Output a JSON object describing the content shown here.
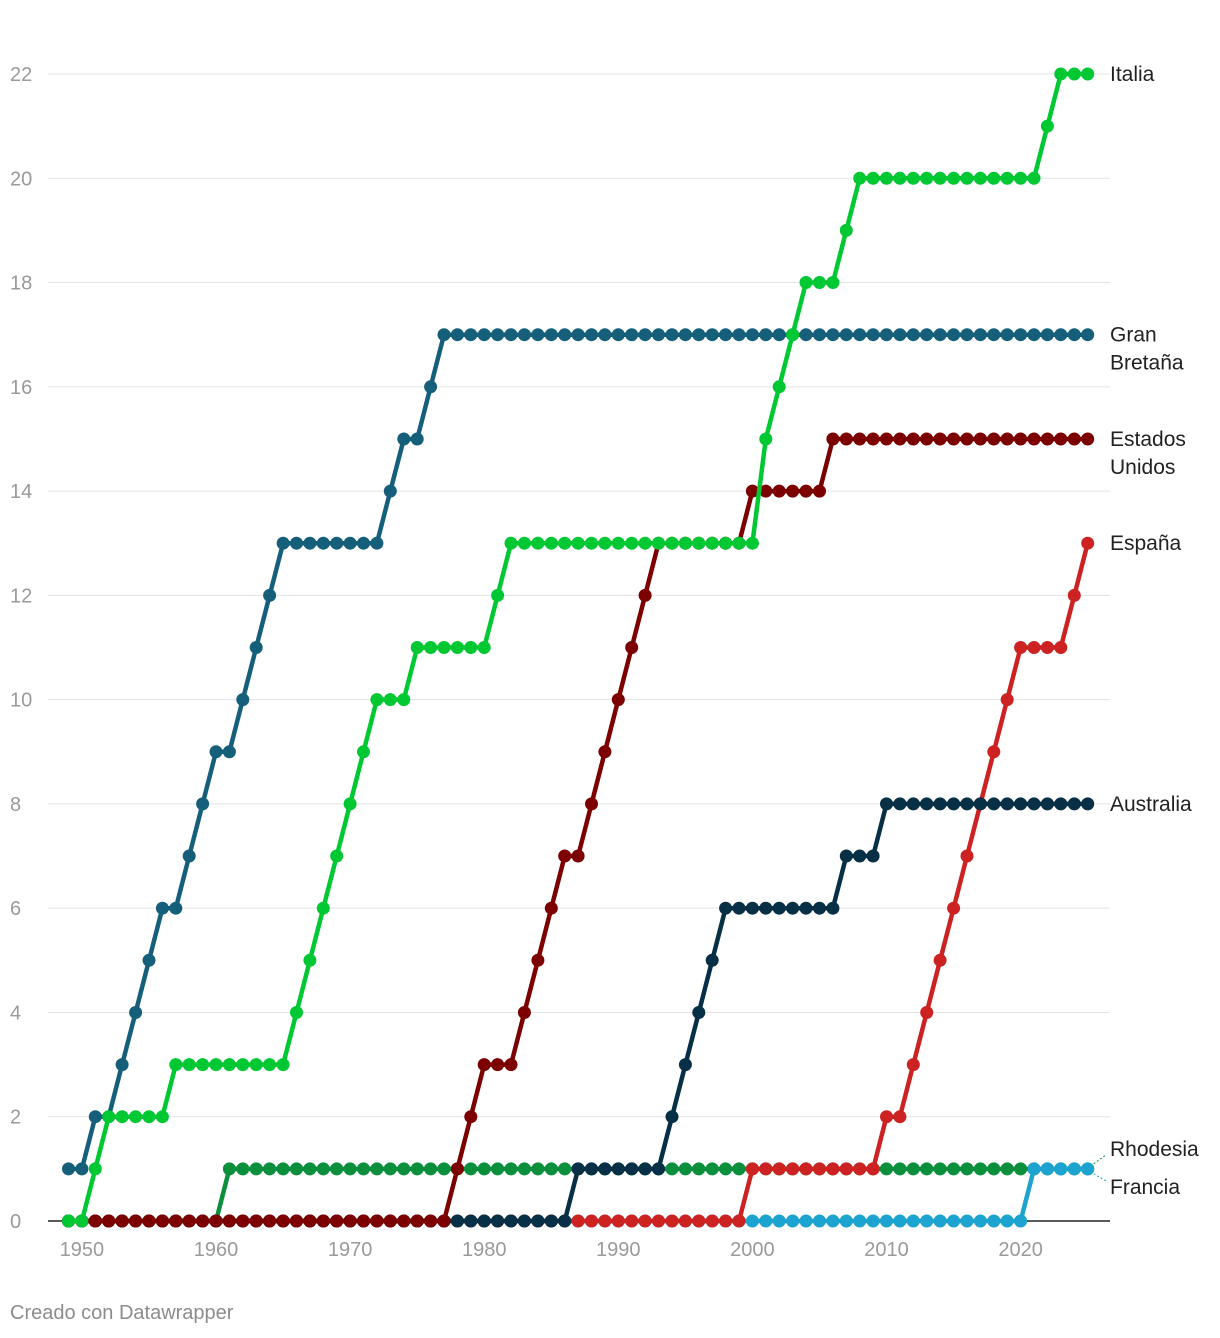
{
  "chart_data": {
    "type": "line",
    "title": "",
    "xlabel": "",
    "ylabel": "",
    "xlim": [
      1948,
      2026
    ],
    "ylim": [
      0,
      22
    ],
    "x_ticks": [
      "1950",
      "1960",
      "1970",
      "1980",
      "1990",
      "2000",
      "2010",
      "2020"
    ],
    "y_ticks": [
      "0",
      "2",
      "4",
      "6",
      "8",
      "10",
      "12",
      "14",
      "16",
      "18",
      "20",
      "22"
    ],
    "grid": true,
    "series": [
      {
        "name": "Rhodesia",
        "label_lines": [
          "Rhodesia"
        ],
        "color": "#0a8f3c",
        "start": 1949,
        "values": [
          0,
          0,
          0,
          0,
          0,
          0,
          0,
          0,
          0,
          0,
          0,
          0,
          1,
          1,
          1,
          1,
          1,
          1,
          1,
          1,
          1,
          1,
          1,
          1,
          1,
          1,
          1,
          1,
          1,
          1,
          1,
          1,
          1,
          1,
          1,
          1,
          1,
          1,
          1,
          1,
          1,
          1,
          1,
          1,
          1,
          1,
          1,
          1,
          1,
          1,
          1,
          1,
          1,
          1,
          1,
          1,
          1,
          1,
          1,
          1,
          1,
          1,
          1,
          1,
          1,
          1,
          1,
          1,
          1,
          1,
          1,
          1,
          1,
          1,
          1,
          1,
          1
        ]
      },
      {
        "name": "Francia",
        "label_lines": [
          "Francia"
        ],
        "color": "#1ca3cf",
        "start": 1949,
        "values": [
          0,
          0,
          0,
          0,
          0,
          0,
          0,
          0,
          0,
          0,
          0,
          0,
          0,
          0,
          0,
          0,
          0,
          0,
          0,
          0,
          0,
          0,
          0,
          0,
          0,
          0,
          0,
          0,
          0,
          0,
          0,
          0,
          0,
          0,
          0,
          0,
          0,
          0,
          0,
          0,
          0,
          0,
          0,
          0,
          0,
          0,
          0,
          0,
          0,
          0,
          0,
          0,
          0,
          0,
          0,
          0,
          0,
          0,
          0,
          0,
          0,
          0,
          0,
          0,
          0,
          0,
          0,
          0,
          0,
          0,
          0,
          0,
          1,
          1,
          1,
          1,
          1
        ]
      },
      {
        "name": "España",
        "label_lines": [
          "España"
        ],
        "color": "#cc2222",
        "start": 1949,
        "values": [
          0,
          0,
          0,
          0,
          0,
          0,
          0,
          0,
          0,
          0,
          0,
          0,
          0,
          0,
          0,
          0,
          0,
          0,
          0,
          0,
          0,
          0,
          0,
          0,
          0,
          0,
          0,
          0,
          0,
          0,
          0,
          0,
          0,
          0,
          0,
          0,
          0,
          0,
          0,
          0,
          0,
          0,
          0,
          0,
          0,
          0,
          0,
          0,
          0,
          0,
          0,
          1,
          1,
          1,
          1,
          1,
          1,
          1,
          1,
          1,
          1,
          2,
          2,
          3,
          4,
          5,
          6,
          7,
          8,
          9,
          10,
          11,
          11,
          11,
          11,
          12,
          13
        ]
      },
      {
        "name": "Australia",
        "label_lines": [
          "Australia"
        ],
        "color": "#072f45",
        "start": 1949,
        "values": [
          0,
          0,
          0,
          0,
          0,
          0,
          0,
          0,
          0,
          0,
          0,
          0,
          0,
          0,
          0,
          0,
          0,
          0,
          0,
          0,
          0,
          0,
          0,
          0,
          0,
          0,
          0,
          0,
          0,
          0,
          0,
          0,
          0,
          0,
          0,
          0,
          0,
          0,
          1,
          1,
          1,
          1,
          1,
          1,
          1,
          2,
          3,
          4,
          5,
          6,
          6,
          6,
          6,
          6,
          6,
          6,
          6,
          6,
          7,
          7,
          7,
          8,
          8,
          8,
          8,
          8,
          8,
          8,
          8,
          8,
          8,
          8,
          8,
          8,
          8,
          8,
          8
        ]
      },
      {
        "name": "Estados Unidos",
        "label_lines": [
          "Estados",
          "Unidos"
        ],
        "color": "#7c0000",
        "start": 1949,
        "values": [
          0,
          0,
          0,
          0,
          0,
          0,
          0,
          0,
          0,
          0,
          0,
          0,
          0,
          0,
          0,
          0,
          0,
          0,
          0,
          0,
          0,
          0,
          0,
          0,
          0,
          0,
          0,
          0,
          0,
          1,
          2,
          3,
          3,
          3,
          4,
          5,
          6,
          7,
          7,
          8,
          9,
          10,
          11,
          12,
          13,
          13,
          13,
          13,
          13,
          13,
          13,
          14,
          14,
          14,
          14,
          14,
          14,
          15,
          15,
          15,
          15,
          15,
          15,
          15,
          15,
          15,
          15,
          15,
          15,
          15,
          15,
          15,
          15,
          15,
          15,
          15,
          15
        ]
      },
      {
        "name": "Gran Bretaña",
        "label_lines": [
          "Gran",
          "Bretaña"
        ],
        "color": "#165f7a",
        "start": 1949,
        "values": [
          1,
          1,
          2,
          2,
          3,
          4,
          5,
          6,
          6,
          7,
          8,
          9,
          9,
          10,
          11,
          12,
          13,
          13,
          13,
          13,
          13,
          13,
          13,
          13,
          14,
          15,
          15,
          16,
          17,
          17,
          17,
          17,
          17,
          17,
          17,
          17,
          17,
          17,
          17,
          17,
          17,
          17,
          17,
          17,
          17,
          17,
          17,
          17,
          17,
          17,
          17,
          17,
          17,
          17,
          17,
          17,
          17,
          17,
          17,
          17,
          17,
          17,
          17,
          17,
          17,
          17,
          17,
          17,
          17,
          17,
          17,
          17,
          17,
          17,
          17,
          17,
          17
        ]
      },
      {
        "name": "Italia",
        "label_lines": [
          "Italia"
        ],
        "color": "#00c832",
        "start": 1949,
        "values": [
          0,
          0,
          1,
          2,
          2,
          2,
          2,
          2,
          3,
          3,
          3,
          3,
          3,
          3,
          3,
          3,
          3,
          4,
          5,
          6,
          7,
          8,
          9,
          10,
          10,
          10,
          11,
          11,
          11,
          11,
          11,
          11,
          12,
          13,
          13,
          13,
          13,
          13,
          13,
          13,
          13,
          13,
          13,
          13,
          13,
          13,
          13,
          13,
          13,
          13,
          13,
          13,
          15,
          16,
          17,
          18,
          18,
          18,
          19,
          20,
          20,
          20,
          20,
          20,
          20,
          20,
          20,
          20,
          20,
          20,
          20,
          20,
          20,
          21,
          22,
          22,
          22
        ]
      }
    ]
  },
  "footer": {
    "credit": "Creado con Datawrapper"
  }
}
